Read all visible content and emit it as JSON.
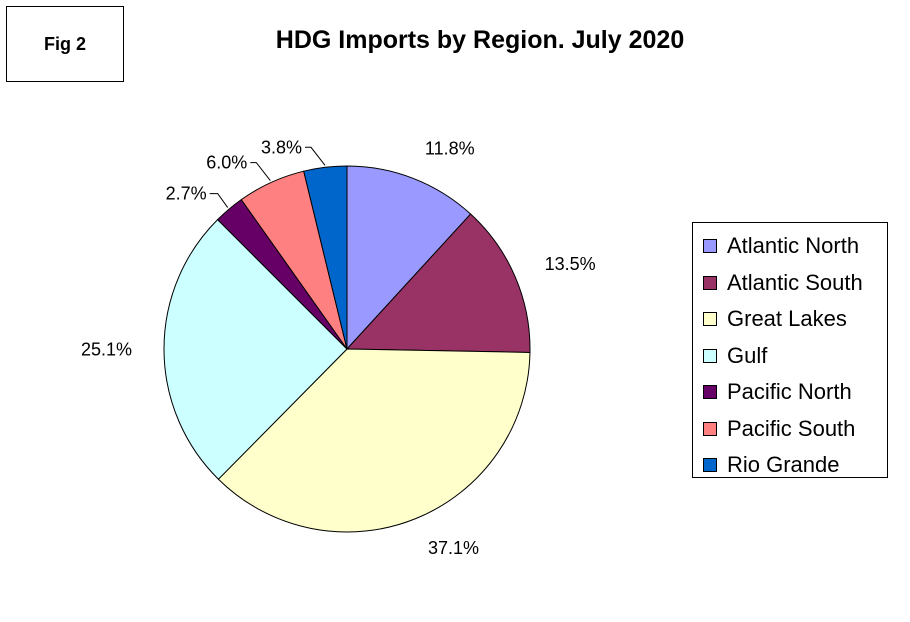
{
  "figure_label": "Fig 2",
  "chart_data": {
    "type": "pie",
    "title": "HDG Imports by Region. July 2020",
    "legend_position": "right",
    "slices": [
      {
        "name": "Atlantic North",
        "value": 11.8,
        "label": "11.8%",
        "color": "#9999ff"
      },
      {
        "name": "Atlantic South",
        "value": 13.5,
        "label": "13.5%",
        "color": "#993366"
      },
      {
        "name": "Great Lakes",
        "value": 37.1,
        "label": "37.1%",
        "color": "#ffffcc"
      },
      {
        "name": "Gulf",
        "value": 25.1,
        "label": "25.1%",
        "color": "#ccffff"
      },
      {
        "name": "Pacific North",
        "value": 2.7,
        "label": "2.7%",
        "color": "#660066"
      },
      {
        "name": "Pacific South",
        "value": 6.0,
        "label": "6.0%",
        "color": "#ff8080"
      },
      {
        "name": "Rio Grande",
        "value": 3.8,
        "label": "3.8%",
        "color": "#0066cc"
      }
    ]
  }
}
